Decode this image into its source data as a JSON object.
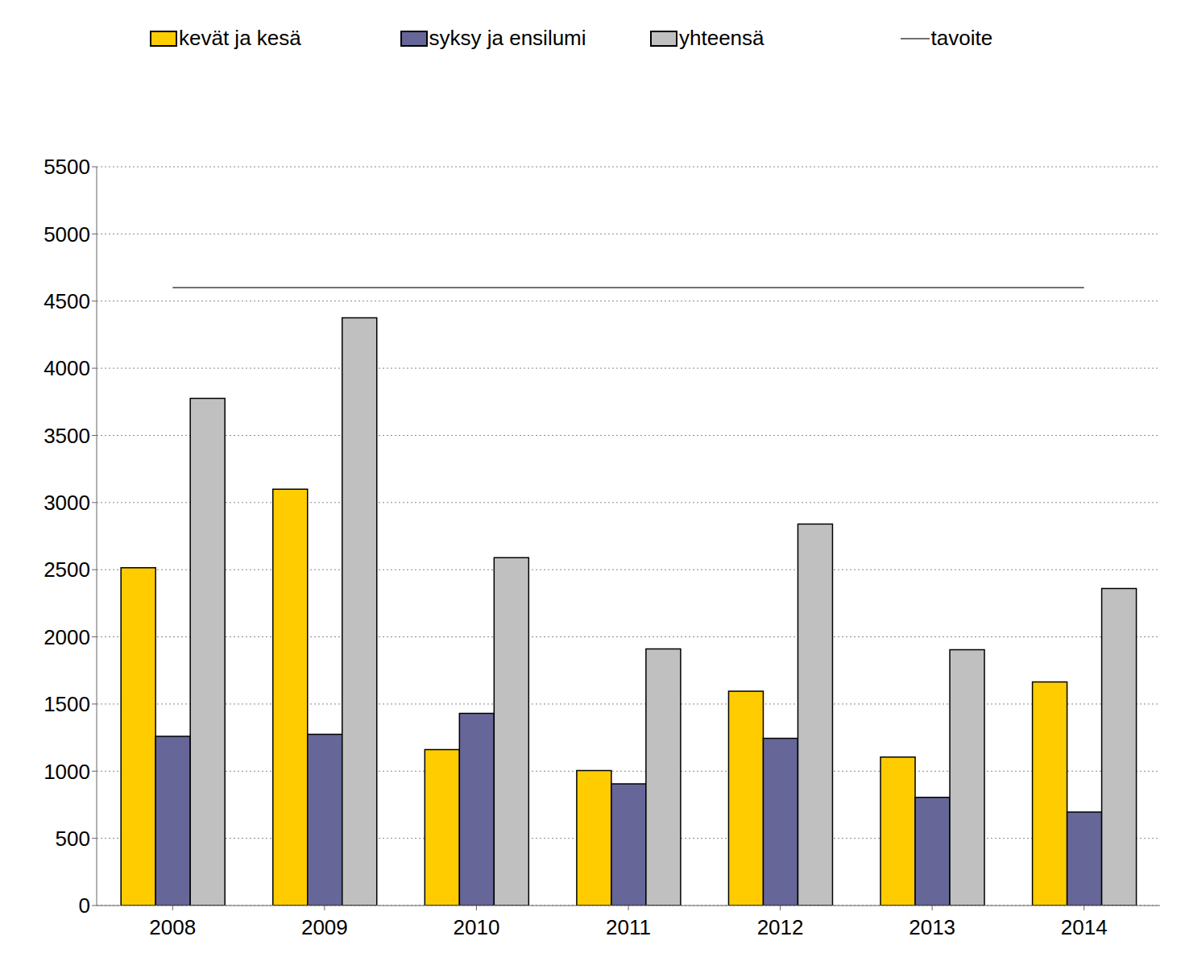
{
  "chart_data": {
    "type": "bar",
    "categories": [
      "2008",
      "2009",
      "2010",
      "2011",
      "2012",
      "2013",
      "2014"
    ],
    "series": [
      {
        "name": "kevät ja kesä",
        "type": "bar",
        "color": "#ffcc00",
        "values": [
          2515,
          3100,
          1160,
          1005,
          1595,
          1105,
          1665
        ]
      },
      {
        "name": "syksy ja ensilumi",
        "type": "bar",
        "color": "#666699",
        "values": [
          1260,
          1275,
          1430,
          905,
          1245,
          805,
          695
        ]
      },
      {
        "name": "yhteensä",
        "type": "bar",
        "color": "#c0c0c0",
        "values": [
          3775,
          4375,
          2590,
          1910,
          2840,
          1905,
          2360
        ]
      },
      {
        "name": "tavoite",
        "type": "line",
        "color": "#707070",
        "values": [
          4600,
          4600,
          4600,
          4600,
          4600,
          4600,
          4600
        ]
      }
    ],
    "ylim": [
      0,
      5500
    ],
    "yticks": [
      0,
      500,
      1000,
      1500,
      2000,
      2500,
      3000,
      3500,
      4000,
      4500,
      5000,
      5500
    ],
    "grid": true,
    "legend": "top"
  }
}
